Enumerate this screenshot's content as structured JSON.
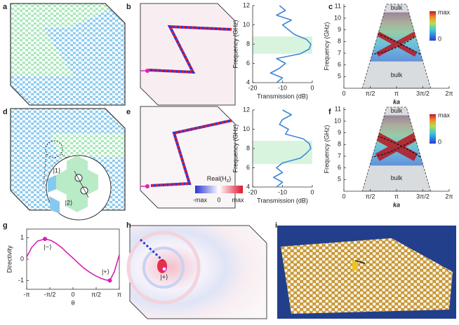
{
  "panel_labels": [
    "a",
    "b",
    "c",
    "d",
    "e",
    "f",
    "g",
    "h",
    "i"
  ],
  "chart_data": [
    {
      "type": "line",
      "orientation": "horizontal",
      "xlabel": "Transmission (dB)",
      "ylabel": "Frequency (GHz)",
      "xlim": [
        -20,
        0
      ],
      "xticks": [
        -20,
        -10,
        0
      ],
      "ylim": [
        4,
        12
      ],
      "yticks": [
        4,
        6,
        8,
        10,
        12
      ],
      "band": [
        7,
        8.8
      ],
      "band_color": "#d8f4de",
      "y": [
        4,
        4.5,
        5,
        5.5,
        6,
        6.5,
        7,
        7.5,
        8,
        8.5,
        9,
        9.5,
        10,
        10.5,
        11,
        11.5,
        12
      ],
      "series": [
        {
          "color": "#3f87d8",
          "values": [
            -12,
            -10,
            -14,
            -11,
            -9,
            -12,
            -4,
            -1,
            -0.5,
            -2,
            -6,
            -8,
            -10,
            -7,
            -12,
            -9,
            -11
          ]
        }
      ]
    },
    {
      "type": "band",
      "xlabel": "ka",
      "ylabel": "Frequency (GHz)",
      "xlim": [
        0,
        6.2832
      ],
      "xticks": [
        0,
        {
          "value": 1.5708,
          "label": "π/2"
        },
        {
          "value": 3.1416,
          "label": "π"
        },
        {
          "value": 4.7124,
          "label": "3π/2"
        },
        {
          "value": 6.2832,
          "label": "2π"
        }
      ],
      "ylim": [
        4,
        11.2
      ],
      "yticks": [
        5,
        6,
        7,
        8,
        9,
        10,
        11
      ],
      "colorbar_labels": [
        "max",
        "0"
      ],
      "region_labels": [
        "bulk",
        "bulk"
      ]
    },
    {
      "type": "line",
      "orientation": "horizontal",
      "xlabel": "Transmission (dB)",
      "ylabel": "Frequency (GHz)",
      "xlim": [
        -20,
        0
      ],
      "xticks": [
        -20,
        -10,
        0
      ],
      "ylim": [
        4,
        12
      ],
      "yticks": [
        4,
        6,
        8,
        10,
        12
      ],
      "band": [
        6.4,
        8.8
      ],
      "band_color": "#d8f4de",
      "y": [
        4,
        4.5,
        5,
        5.5,
        6,
        6.5,
        7,
        7.5,
        8,
        8.5,
        9,
        9.5,
        10,
        10.5,
        11,
        11.5,
        12
      ],
      "series": [
        {
          "color": "#3f87d8",
          "values": [
            -12,
            -10,
            -13,
            -10,
            -12,
            -10,
            -4,
            -2,
            -0.5,
            -1,
            -3,
            -9,
            -8,
            -11,
            -10,
            -7,
            -10
          ]
        }
      ]
    },
    {
      "type": "band",
      "xlabel": "ka",
      "ylabel": "Frequency (GHz)",
      "xlim": [
        0,
        6.2832
      ],
      "xticks": [
        0,
        {
          "value": 1.5708,
          "label": "π/2"
        },
        {
          "value": 3.1416,
          "label": "π"
        },
        {
          "value": 4.7124,
          "label": "3π/2"
        },
        {
          "value": 6.2832,
          "label": "2π"
        }
      ],
      "ylim": [
        4,
        11.2
      ],
      "yticks": [
        5,
        6,
        7,
        8,
        9,
        10,
        11
      ],
      "colorbar_labels": [
        "max",
        "0"
      ],
      "region_labels": [
        "bulk",
        "bulk"
      ]
    },
    {
      "type": "line",
      "xlabel": "θ",
      "ylabel": "Directivity",
      "frame": true,
      "xlim": [
        -3.1416,
        3.1416
      ],
      "xticks": [
        {
          "value": -3.1416,
          "label": "-π"
        },
        {
          "value": -1.5708,
          "label": "-π/2"
        },
        0,
        {
          "value": 1.5708,
          "label": "π/2"
        },
        {
          "value": 3.1416,
          "label": "π"
        }
      ],
      "ylim": [
        -1.15,
        1.15
      ],
      "yticks": [
        -1,
        0,
        1
      ],
      "x": [
        -3.1416,
        -2.8,
        -2.4,
        -1.9,
        -1.5,
        -1.1,
        -0.7,
        -0.35,
        0,
        0.35,
        0.7,
        1.1,
        1.5,
        1.9,
        2.2,
        2.5,
        2.8,
        3.1416
      ],
      "series": [
        {
          "color": "#d81eb4",
          "values": [
            0.1,
            0.55,
            0.85,
            0.95,
            0.88,
            0.72,
            0.5,
            0.27,
            0.05,
            -0.18,
            -0.4,
            -0.6,
            -0.77,
            -0.9,
            -0.97,
            -1,
            -0.6,
            0.2
          ]
        }
      ],
      "points": [
        {
          "x": -1.9,
          "y": 0.95,
          "label": "|−⟩"
        },
        {
          "x": 2.5,
          "y": -1,
          "label": "|+⟩"
        }
      ]
    }
  ],
  "d_labels": [
    "|1⟩",
    "|2⟩"
  ],
  "h_labels": {
    "colorbar_title": [
      "Real(H",
      "z",
      ")"
    ],
    "colorbar_ticks": [
      "-max",
      "0",
      "max"
    ],
    "state": "|+⟩"
  }
}
